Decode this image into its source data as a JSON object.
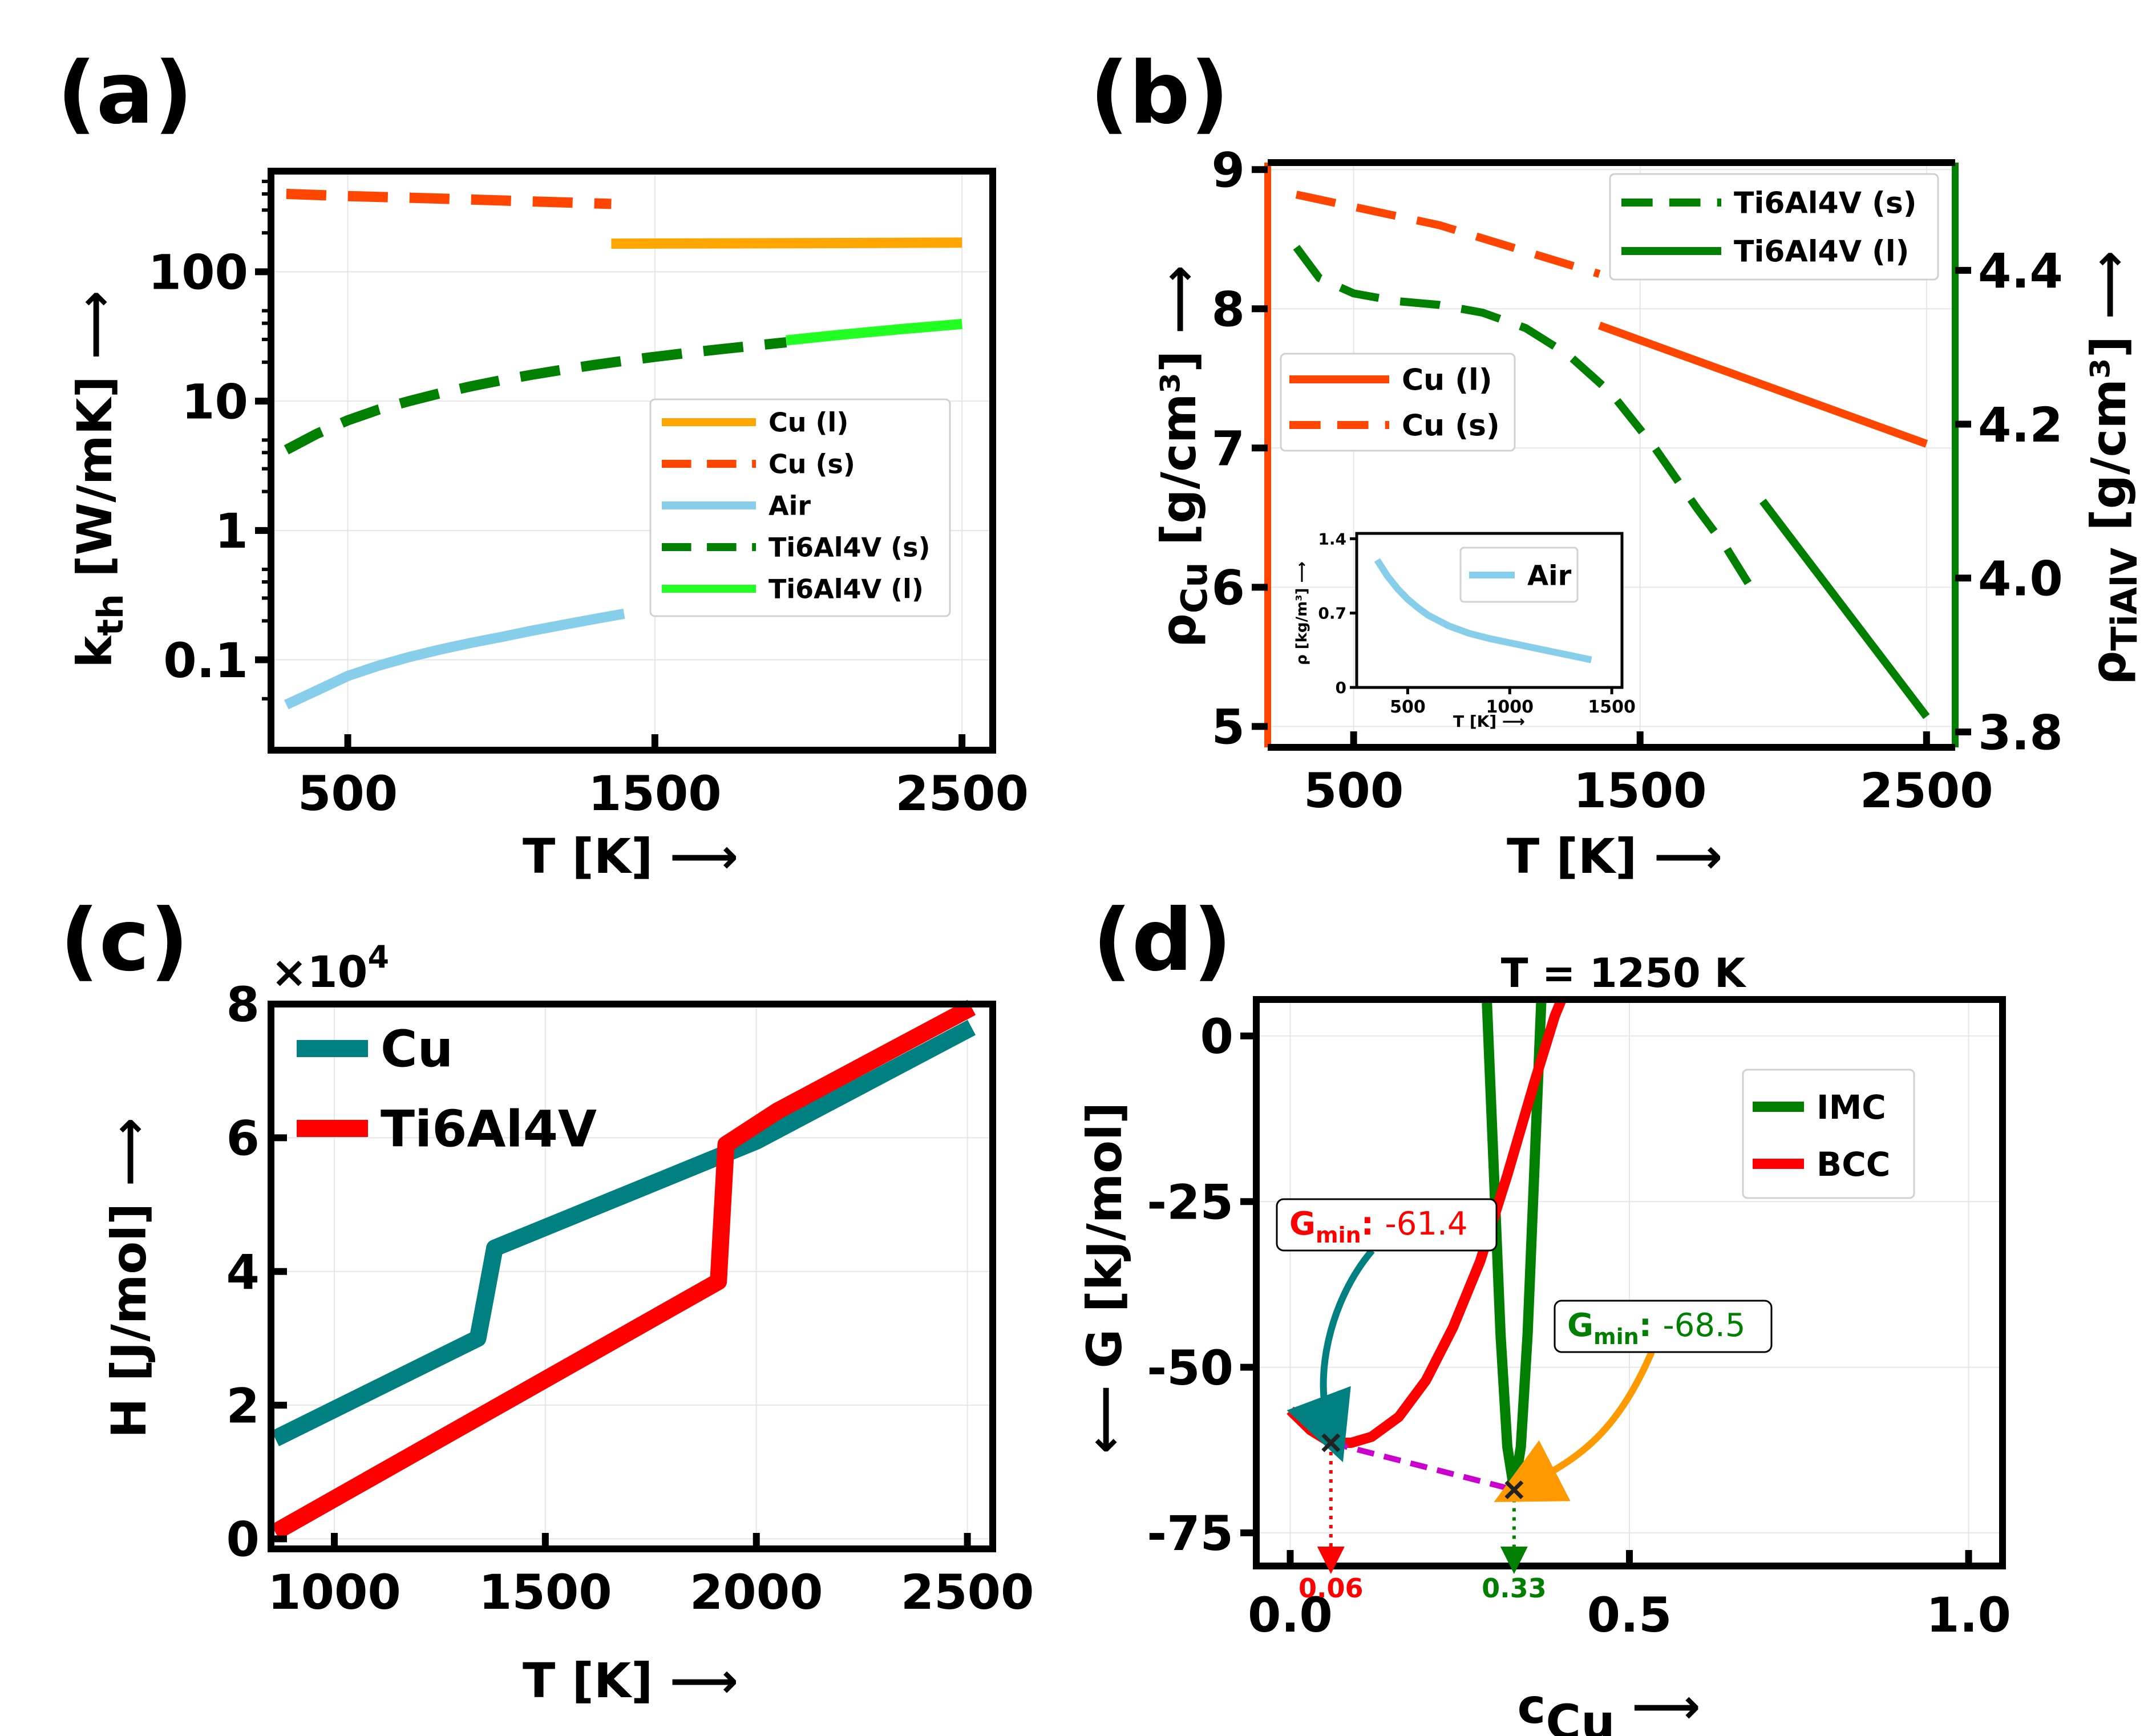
{
  "figure": {
    "panel_letters": [
      "(a)",
      "(b)",
      "(c)",
      "(d)"
    ]
  },
  "chart_data": [
    {
      "id": "a",
      "type": "line",
      "xlabel": "T [K] ⟶",
      "ylabel_main": "k",
      "ylabel_sub": "th",
      "ylabel_rest": " [W/mK] ⟶",
      "xlim": [
        250,
        2600
      ],
      "ylim_log": [
        0.02,
        600
      ],
      "log_y": true,
      "xticks": [
        500,
        1500,
        2500
      ],
      "xtick_labels": [
        "500",
        "1500",
        "2500"
      ],
      "yticks": [
        0.1,
        1,
        10,
        100
      ],
      "ytick_labels": [
        "0.1",
        "1",
        "10",
        "100"
      ],
      "legend": {
        "placement": "center-right",
        "entries": [
          "Cu (l)",
          "Cu (s)",
          "Air",
          "Ti6Al4V (s)",
          "Ti6Al4V (l)"
        ]
      },
      "series": [
        {
          "name": "Cu (l)",
          "color": "#ffa500",
          "dash": false,
          "x": [
            1358,
            1800,
            2200,
            2500
          ],
          "y": [
            165,
            166,
            167,
            168
          ]
        },
        {
          "name": "Cu (s)",
          "color": "#ff4500",
          "dash": true,
          "x": [
            300,
            500,
            800,
            1100,
            1358
          ],
          "y": [
            400,
            385,
            368,
            350,
            335
          ]
        },
        {
          "name": "Air",
          "color": "#87ceeb",
          "dash": false,
          "x": [
            300,
            400,
            500,
            600,
            700,
            800,
            900,
            1000,
            1100,
            1200,
            1300,
            1400
          ],
          "y": [
            0.045,
            0.058,
            0.075,
            0.09,
            0.105,
            0.12,
            0.135,
            0.15,
            0.168,
            0.186,
            0.206,
            0.227
          ]
        },
        {
          "name": "Ti6Al4V (s)",
          "color": "#007f00",
          "dash": true,
          "x": [
            300,
            400,
            500,
            600,
            700,
            800,
            900,
            1000,
            1100,
            1200,
            1300,
            1400,
            1500,
            1600,
            1700,
            1800,
            1928
          ],
          "y": [
            4.2,
            5.6,
            7.1,
            8.6,
            10.0,
            11.5,
            13.0,
            14.5,
            16.0,
            17.5,
            19.0,
            20.5,
            22.0,
            23.5,
            25.0,
            26.5,
            28.5
          ]
        },
        {
          "name": "Ti6Al4V (l)",
          "color": "#22ff22",
          "dash": false,
          "x": [
            1928,
            2100,
            2300,
            2500
          ],
          "y": [
            29.5,
            32.5,
            36,
            39.5
          ]
        }
      ]
    },
    {
      "id": "b",
      "type": "line",
      "xlabel": "T [K] ⟶",
      "ylabel_main": "ρ",
      "ylabel_sub": "Cu",
      "ylabel_rest": " [g/cm³] ⟶",
      "y2label_main": "ρ",
      "y2label_sub": "TiAlV",
      "y2label_rest": " [g/cm³] ⟶",
      "xlim": [
        200,
        2600
      ],
      "ylim": [
        4.85,
        9.05
      ],
      "y2lim": [
        3.78,
        4.54
      ],
      "xticks": [
        500,
        1500,
        2500
      ],
      "xtick_labels": [
        "500",
        "1500",
        "2500"
      ],
      "yticks": [
        5,
        6,
        7,
        8,
        9
      ],
      "ytick_labels": [
        "5",
        "6",
        "7",
        "8",
        "9"
      ],
      "y2ticks": [
        3.8,
        4.0,
        4.2,
        4.4
      ],
      "y2tick_labels": [
        "3.8",
        "4.0",
        "4.2",
        "4.4"
      ],
      "left_axis_color": "#ff4500",
      "right_axis_color": "#007f00",
      "legend_left": {
        "placement": "center-left",
        "entries": [
          "Cu (l)",
          "Cu (s)"
        ]
      },
      "legend_right": {
        "placement": "top-right",
        "entries": [
          "Ti6Al4V (s)",
          "Ti6Al4V (l)"
        ]
      },
      "series_left": [
        {
          "name": "Cu (l)",
          "color": "#ff4500",
          "dash": false,
          "x": [
            1358,
            2500
          ],
          "y": [
            7.88,
            7.03
          ]
        },
        {
          "name": "Cu (s)",
          "color": "#ff4500",
          "dash": true,
          "x": [
            300,
            800,
            1358
          ],
          "y": [
            8.82,
            8.6,
            8.25
          ]
        }
      ],
      "series_right": [
        {
          "name": "Ti6Al4V (s)",
          "color": "#007f00",
          "dash": true,
          "x": [
            300,
            380,
            500,
            650,
            800,
            950,
            1100,
            1250,
            1400,
            1550,
            1700,
            1800,
            1900
          ],
          "y": [
            4.43,
            4.39,
            4.37,
            4.36,
            4.355,
            4.345,
            4.325,
            4.29,
            4.24,
            4.17,
            4.09,
            4.04,
            3.98
          ]
        },
        {
          "name": "Ti6Al4V (l)",
          "color": "#007f00",
          "dash": false,
          "x": [
            1928,
            2500
          ],
          "y": [
            4.1,
            3.82
          ]
        }
      ],
      "inset": {
        "xlabel": "T [K] ⟶",
        "ylabel": "ρ [kg/m³] ⟶",
        "xlim": [
          250,
          1550
        ],
        "ylim": [
          0,
          1.45
        ],
        "xticks": [
          500,
          1000,
          1500
        ],
        "xtick_labels": [
          "500",
          "1000",
          "1500"
        ],
        "yticks": [
          0,
          0.7,
          1.4
        ],
        "ytick_labels": [
          "0",
          "0.7",
          "1.4"
        ],
        "legend": {
          "placement": "top-right",
          "entries": [
            "Air"
          ]
        },
        "series": [
          {
            "name": "Air",
            "color": "#87ceeb",
            "x": [
              350,
              400,
              450,
              500,
              550,
              600,
              700,
              800,
              900,
              1000,
              1100,
              1200,
              1300,
              1400
            ],
            "y": [
              1.2,
              1.05,
              0.93,
              0.83,
              0.75,
              0.68,
              0.58,
              0.51,
              0.46,
              0.42,
              0.38,
              0.34,
              0.3,
              0.26
            ]
          }
        ]
      }
    },
    {
      "id": "c",
      "type": "line",
      "xlabel": "T [K] ⟶",
      "ylabel": "H [J/mol] ⟶",
      "multiplier_base": "×10",
      "multiplier_exp": "4",
      "xlim": [
        850,
        2560
      ],
      "ylim": [
        -0.15,
        8.0
      ],
      "xticks": [
        1000,
        1500,
        2000,
        2500
      ],
      "xtick_labels": [
        "1000",
        "1500",
        "2000",
        "2500"
      ],
      "yticks": [
        0,
        2,
        4,
        6,
        8
      ],
      "ytick_labels": [
        "0",
        "2",
        "4",
        "6",
        "8"
      ],
      "legend": {
        "placement": "top-left",
        "entries": [
          "Cu",
          "Ti6Al4V"
        ]
      },
      "series": [
        {
          "name": "Cu",
          "color": "#008080",
          "x": [
            860,
            1340,
            1358,
            1380,
            2000,
            2510
          ],
          "y": [
            1.5,
            3.0,
            3.6,
            4.35,
            5.95,
            7.65
          ]
        },
        {
          "name": "Ti6Al4V",
          "color": "#ff0000",
          "x": [
            860,
            1910,
            1928,
            2050,
            2510
          ],
          "y": [
            0.1,
            3.85,
            5.9,
            6.4,
            7.95
          ]
        }
      ]
    },
    {
      "id": "d",
      "type": "line",
      "title": "T = 1250 K",
      "xlabel_main": "c",
      "xlabel_sub": "Cu",
      "xlabel_rest": " ⟶",
      "ylabel": "⟵ G [kJ/mol]",
      "xlim": [
        -0.05,
        1.05
      ],
      "ylim": [
        -80,
        5.5
      ],
      "xticks": [
        0.0,
        0.5,
        1.0
      ],
      "xtick_labels": [
        "0.0",
        "0.5",
        "1.0"
      ],
      "yticks": [
        0,
        -25,
        -50,
        -75
      ],
      "ytick_labels": [
        "0",
        "-25",
        "-50",
        "-75"
      ],
      "legend": {
        "placement": "upper-right",
        "entries": [
          "IMC",
          "BCC"
        ]
      },
      "series": [
        {
          "name": "IMC",
          "color": "#007f00",
          "x": [
            0.29,
            0.3,
            0.31,
            0.32,
            0.33,
            0.34,
            0.35,
            0.36,
            0.37
          ],
          "y": [
            5,
            -20,
            -45,
            -62,
            -68.5,
            -62,
            -45,
            -20,
            5
          ]
        },
        {
          "name": "BCC",
          "color": "#ff0000",
          "x": [
            0.0,
            0.03,
            0.06,
            0.09,
            0.12,
            0.16,
            0.2,
            0.24,
            0.28,
            0.32,
            0.36,
            0.39,
            0.4
          ],
          "y": [
            -56.5,
            -59.5,
            -61.4,
            -61.4,
            -60.5,
            -57.5,
            -52,
            -44,
            -34,
            -21,
            -7,
            3,
            5.5
          ]
        }
      ],
      "tangent": {
        "color": "#cc00cc",
        "x": [
          0.06,
          0.33
        ],
        "y": [
          -61.4,
          -68.5
        ]
      },
      "annotations": [
        {
          "label_main": "G",
          "label_sub": "min",
          "sep": ":",
          "value": "-61.4",
          "color": "#ff0000",
          "arrow_color": "#008080",
          "point_x": 0.06,
          "point_y": -61.4,
          "drop_label": "0.06"
        },
        {
          "label_main": "G",
          "label_sub": "min",
          "sep": ":",
          "value": "-68.5",
          "color": "#007f00",
          "arrow_color": "#ff9900",
          "point_x": 0.33,
          "point_y": -68.5,
          "drop_label": "0.33"
        }
      ]
    }
  ]
}
